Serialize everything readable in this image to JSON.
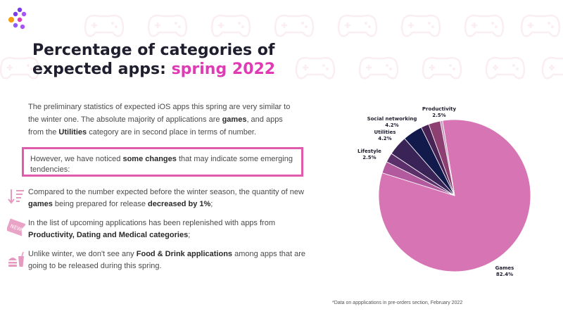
{
  "title": {
    "main": "Percentage of categories of expected apps:",
    "accent": "spring 2022"
  },
  "intro": {
    "t1": "The preliminary statistics of expected iOS apps this spring are very similar to the winter one. The absolute majority of applications are ",
    "b1": "games",
    "t2": ", and apps from the ",
    "b2": "Utilities",
    "t3": " category are in second place in terms of number."
  },
  "callout": {
    "t1": "However, we have noticed ",
    "b1": "some changes",
    "t2": " that may indicate some emerging tendencies:"
  },
  "bullets": [
    {
      "icon": "sort-descending-icon",
      "t1": "Compared to the number expected before the winter season, the quantity of new ",
      "b1": "games",
      "t2": " being prepared for release ",
      "b2": "decreased by 1%",
      "t3": ";"
    },
    {
      "icon": "new-badge-icon",
      "t1": "In the list of upcoming applications has been replenished with apps from ",
      "b1": "Productivity, Dating and Medical categories",
      "t2": ";"
    },
    {
      "icon": "food-drink-icon",
      "t1": "Unlike winter, we don't see any ",
      "b1": "Food & Drink applications",
      "t2": " among apps that are going to be released during this spring."
    }
  ],
  "colors": {
    "accent": "#e03ab4",
    "callout_border": "#e05aae",
    "games": "#d674b4"
  },
  "chart_data": {
    "type": "pie",
    "slices": [
      {
        "label": "Games",
        "value": 82.4,
        "value_label": "82.4%",
        "color": "#d674b4"
      },
      {
        "label": "Lifestyle",
        "value": 2.5,
        "value_label": "2.5%",
        "color": "#b35a9f"
      },
      {
        "label": "",
        "value": 2.0,
        "value_label": "",
        "color": "#5a2f6a"
      },
      {
        "label": "Utilities",
        "value": 4.2,
        "value_label": "4.2%",
        "color": "#3a2357"
      },
      {
        "label": "Social networking",
        "value": 4.2,
        "value_label": "4.2%",
        "color": "#111a4a"
      },
      {
        "label": "",
        "value": 1.7,
        "value_label": "",
        "color": "#4a2356"
      },
      {
        "label": "Productivity",
        "value": 2.5,
        "value_label": "2.5%",
        "color": "#8e3f72"
      },
      {
        "label": "",
        "value": 0.5,
        "value_label": "",
        "color": "#c89bc0"
      }
    ]
  },
  "footnote": "*Data on appplications in pre-orders section, February 2022"
}
